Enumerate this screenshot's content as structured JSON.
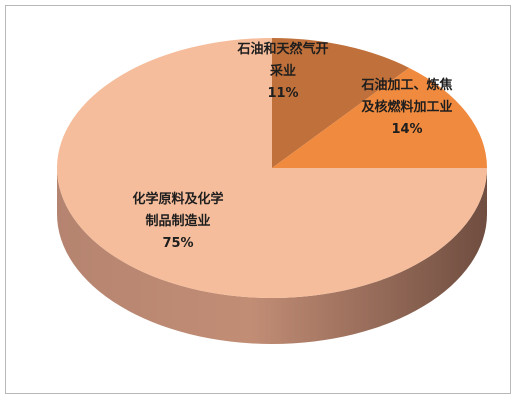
{
  "chart_data": {
    "type": "pie",
    "categories": [
      "石油和天然气开采业",
      "石油加工、炼焦及核燃料加工业",
      "化学原料及化学制品制造业"
    ],
    "values": [
      11,
      14,
      75
    ],
    "value_labels": [
      "11%",
      "14%",
      "75%"
    ],
    "colors": [
      "#c0703a",
      "#f08a3e",
      "#f5bd9b"
    ]
  }
}
